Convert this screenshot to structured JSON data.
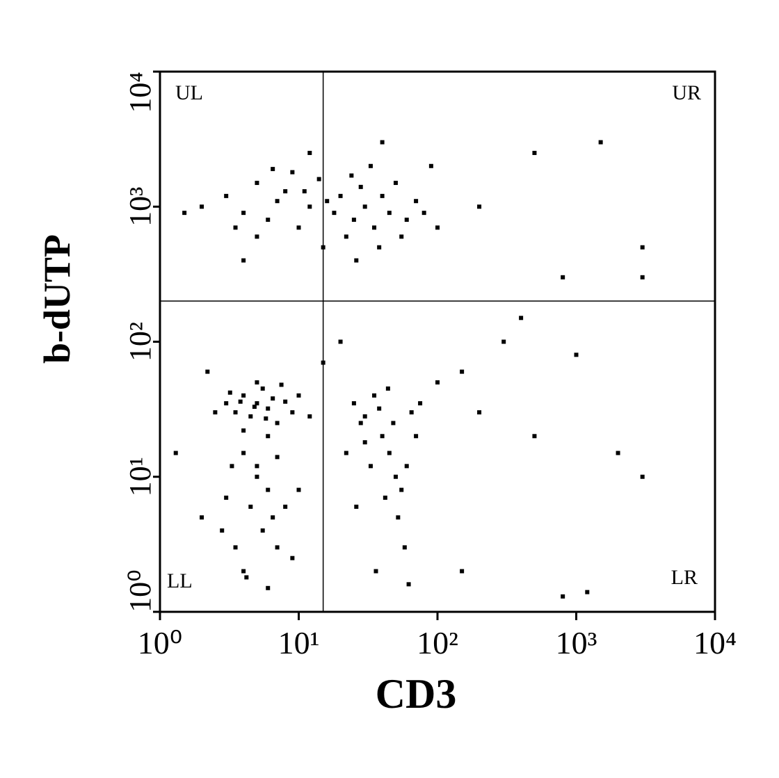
{
  "chart_data": {
    "type": "scatter",
    "x_label": "CD3",
    "y_label": "b-dUTP",
    "xlim": [
      1,
      10000
    ],
    "ylim": [
      1,
      10000
    ],
    "log_x": true,
    "log_y": true,
    "xticks": [
      {
        "value": 1,
        "label": "10⁰"
      },
      {
        "value": 10,
        "label": "10¹"
      },
      {
        "value": 100,
        "label": "10²"
      },
      {
        "value": 1000,
        "label": "10³"
      },
      {
        "value": 10000,
        "label": "10⁴"
      }
    ],
    "yticks": [
      {
        "value": 1,
        "label": "10⁰"
      },
      {
        "value": 10,
        "label": "10¹"
      },
      {
        "value": 100,
        "label": "10²"
      },
      {
        "value": 1000,
        "label": "10³"
      },
      {
        "value": 10000,
        "label": "10⁴"
      }
    ],
    "quadrant_x": 15,
    "quadrant_y": 200,
    "quadrant_labels": [
      "UL",
      "UR",
      "LL",
      "LR"
    ],
    "color": "#000000",
    "x": [
      3,
      4,
      5,
      6,
      7,
      8,
      10,
      12,
      14,
      18,
      20,
      25,
      28,
      30,
      35,
      40,
      45,
      50,
      60,
      70,
      5,
      9,
      15,
      22,
      33,
      2,
      3.5,
      6.5,
      11,
      16,
      24,
      38,
      55,
      80,
      100,
      4,
      26,
      200,
      500,
      1500,
      3000,
      800,
      12,
      40,
      90,
      1.5,
      3,
      3.5,
      4,
      4.5,
      5,
      5.5,
      6,
      6.5,
      7,
      8,
      4,
      5,
      3.2,
      6,
      9,
      10,
      7.5,
      4.8,
      5.8,
      3.8,
      2.5,
      12,
      4,
      5,
      6,
      4.5,
      5.5,
      3.5,
      4,
      6,
      7,
      5,
      3,
      6.5,
      4.2,
      8,
      2.8,
      9,
      3.3,
      7,
      2,
      10,
      25,
      30,
      35,
      40,
      45,
      50,
      55,
      60,
      30,
      28,
      38,
      48,
      65,
      70,
      52,
      42,
      33,
      58,
      22,
      75,
      44,
      26,
      36,
      62,
      150,
      200,
      300,
      500,
      1000,
      2000,
      3000,
      150,
      800,
      1200,
      2.2,
      1.3,
      20,
      15,
      100,
      400,
      3000
    ],
    "y": [
      1200,
      900,
      1500,
      800,
      1100,
      1300,
      700,
      1000,
      1600,
      900,
      1200,
      800,
      1400,
      1000,
      700,
      1200,
      900,
      1500,
      800,
      1100,
      600,
      1800,
      500,
      600,
      2000,
      1000,
      700,
      1900,
      1300,
      1100,
      1700,
      500,
      600,
      900,
      700,
      400,
      400,
      1000,
      2500,
      3000,
      500,
      300,
      2500,
      3000,
      2000,
      900,
      35,
      30,
      40,
      28,
      35,
      45,
      32,
      38,
      25,
      36,
      22,
      50,
      42,
      20,
      30,
      40,
      48,
      33,
      27,
      36,
      30,
      28,
      15,
      12,
      8,
      6,
      4,
      3,
      2,
      1.5,
      3,
      10,
      7,
      5,
      1.8,
      6,
      4,
      2.5,
      12,
      14,
      5,
      8,
      35,
      28,
      40,
      20,
      15,
      10,
      8,
      12,
      18,
      25,
      32,
      25,
      30,
      20,
      5,
      7,
      12,
      3,
      15,
      35,
      45,
      6,
      2,
      1.6,
      60,
      30,
      100,
      20,
      80,
      15,
      10,
      2,
      1.3,
      1.4,
      60,
      15,
      100,
      70,
      50,
      150,
      300
    ]
  }
}
